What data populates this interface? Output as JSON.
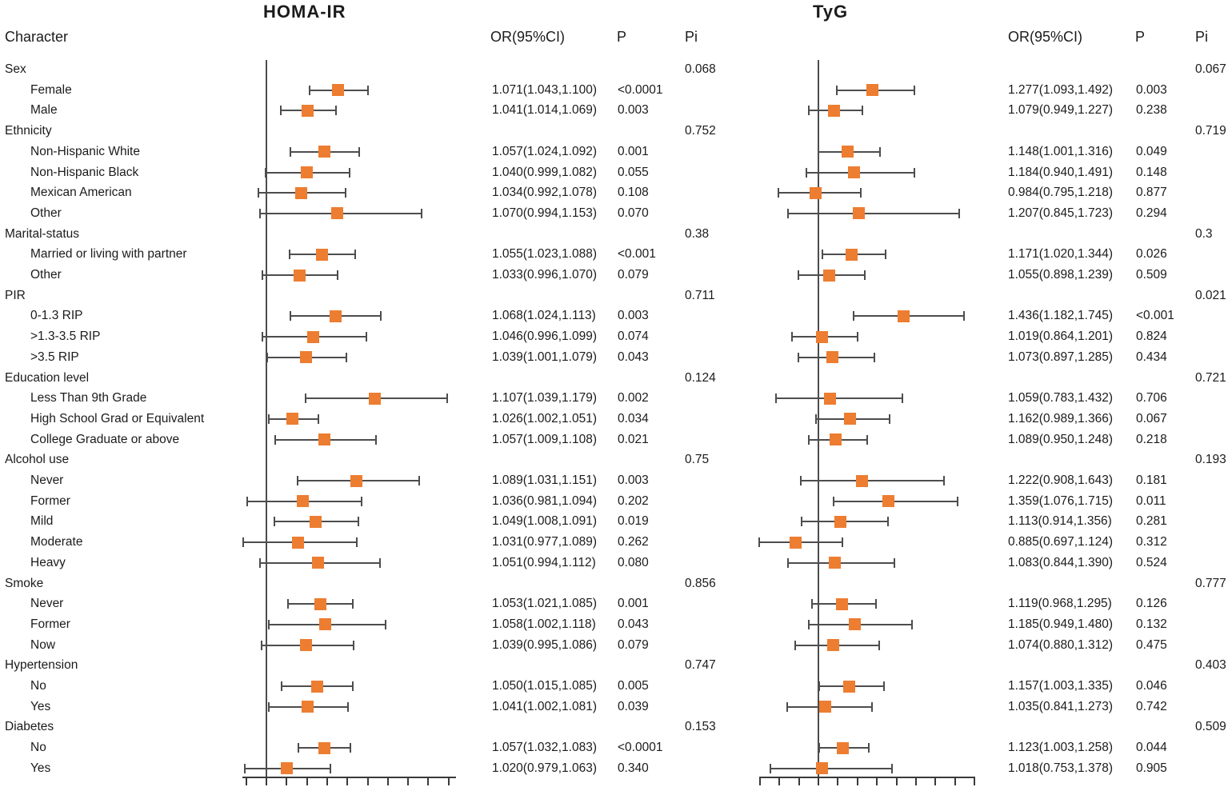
{
  "figure": {
    "left_title": "HOMA-IR",
    "right_title": "TyG",
    "column_headers": {
      "character": "Character",
      "or_ci": "OR(95%CI)",
      "p": "P",
      "pi": "Pi"
    }
  },
  "colors": {
    "marker": "#ED7D31",
    "ci_line": "#4d4d4d",
    "axis_line": "#3a3a3a",
    "text": "#1b1b1b"
  },
  "chart_data": {
    "type": "forest",
    "description": "Two-panel forest plot of odds ratios (squares) with 95% CI whiskers; vertical reference line at OR=1 in each panel; bottom axis tick labels cut off",
    "panels": [
      {
        "name": "HOMA-IR",
        "ref_line": 1.0,
        "xlim": [
          0.975,
          1.19
        ],
        "tick_start": 0.98,
        "tick_step": 0.02,
        "tick_count": 11,
        "axis_labels_visible": false
      },
      {
        "name": "TyG",
        "ref_line": 1.0,
        "xlim": [
          0.7,
          1.8
        ],
        "tick_start": 0.7,
        "tick_step": 0.1,
        "tick_count": 12,
        "axis_labels_visible": false
      }
    ],
    "rows": [
      {
        "label": "Sex",
        "indent": false,
        "homa": {
          "pi": "0.068"
        },
        "tyg": {
          "pi": "0.067"
        }
      },
      {
        "label": "Female",
        "indent": true,
        "homa": {
          "or": "1.071(1.043,1.100)",
          "p": "<0.0001"
        },
        "tyg": {
          "or": "1.277(1.093,1.492)",
          "p": "0.003"
        }
      },
      {
        "label": "Male",
        "indent": true,
        "homa": {
          "or": "1.041(1.014,1.069)",
          "p": "0.003"
        },
        "tyg": {
          "or": "1.079(0.949,1.227)",
          "p": "0.238"
        }
      },
      {
        "label": "Ethnicity",
        "indent": false,
        "homa": {
          "pi": "0.752"
        },
        "tyg": {
          "pi": "0.719"
        }
      },
      {
        "label": "Non-Hispanic White",
        "indent": true,
        "homa": {
          "or": "1.057(1.024,1.092)",
          "p": "0.001"
        },
        "tyg": {
          "or": "1.148(1.001,1.316)",
          "p": "0.049"
        }
      },
      {
        "label": "Non-Hispanic Black",
        "indent": true,
        "homa": {
          "or": "1.040(0.999,1.082)",
          "p": "0.055"
        },
        "tyg": {
          "or": "1.184(0.940,1.491)",
          "p": "0.148"
        }
      },
      {
        "label": "Mexican American",
        "indent": true,
        "homa": {
          "or": "1.034(0.992,1.078)",
          "p": "0.108"
        },
        "tyg": {
          "or": "0.984(0.795,1.218)",
          "p": "0.877"
        }
      },
      {
        "label": "Other",
        "indent": true,
        "homa": {
          "or": "1.070(0.994,1.153)",
          "p": "0.070"
        },
        "tyg": {
          "or": "1.207(0.845,1.723)",
          "p": "0.294"
        }
      },
      {
        "label": "Marital-status",
        "indent": false,
        "homa": {
          "pi": "0.38"
        },
        "tyg": {
          "pi": "0.3"
        }
      },
      {
        "label": "Married or living with partner",
        "indent": true,
        "homa": {
          "or": "1.055(1.023,1.088)",
          "p": "<0.001"
        },
        "tyg": {
          "or": "1.171(1.020,1.344)",
          "p": "0.026"
        }
      },
      {
        "label": "Other",
        "indent": true,
        "homa": {
          "or": "1.033(0.996,1.070)",
          "p": "0.079"
        },
        "tyg": {
          "or": "1.055(0.898,1.239)",
          "p": "0.509"
        }
      },
      {
        "label": "PIR",
        "indent": false,
        "homa": {
          "pi": "0.711"
        },
        "tyg": {
          "pi": "0.021"
        }
      },
      {
        "label": "0-1.3 RIP",
        "indent": true,
        "homa": {
          "or": "1.068(1.024,1.113)",
          "p": "0.003"
        },
        "tyg": {
          "or": "1.436(1.182,1.745)",
          "p": "<0.001"
        }
      },
      {
        "label": ">1.3-3.5 RIP",
        "indent": true,
        "homa": {
          "or": "1.046(0.996,1.099)",
          "p": "0.074"
        },
        "tyg": {
          "or": "1.019(0.864,1.201)",
          "p": "0.824"
        }
      },
      {
        "label": ">3.5 RIP",
        "indent": true,
        "homa": {
          "or": "1.039(1.001,1.079)",
          "p": "0.043"
        },
        "tyg": {
          "or": "1.073(0.897,1.285)",
          "p": "0.434"
        }
      },
      {
        "label": "Education level",
        "indent": false,
        "homa": {
          "pi": "0.124"
        },
        "tyg": {
          "pi": "0.721"
        }
      },
      {
        "label": "Less Than 9th Grade",
        "indent": true,
        "homa": {
          "or": "1.107(1.039,1.179)",
          "p": "0.002"
        },
        "tyg": {
          "or": "1.059(0.783,1.432)",
          "p": "0.706"
        }
      },
      {
        "label": "High School Grad or Equivalent",
        "indent": true,
        "homa": {
          "or": "1.026(1.002,1.051)",
          "p": "0.034"
        },
        "tyg": {
          "or": "1.162(0.989,1.366)",
          "p": "0.067"
        }
      },
      {
        "label": "College Graduate or above",
        "indent": true,
        "homa": {
          "or": "1.057(1.009,1.108)",
          "p": "0.021"
        },
        "tyg": {
          "or": "1.089(0.950,1.248)",
          "p": "0.218"
        }
      },
      {
        "label": "Alcohol use",
        "indent": false,
        "homa": {
          "pi": "0.75"
        },
        "tyg": {
          "pi": "0.193"
        }
      },
      {
        "label": "Never",
        "indent": true,
        "homa": {
          "or": "1.089(1.031,1.151)",
          "p": "0.003"
        },
        "tyg": {
          "or": "1.222(0.908,1.643)",
          "p": "0.181"
        }
      },
      {
        "label": "Former",
        "indent": true,
        "homa": {
          "or": "1.036(0.981,1.094)",
          "p": "0.202"
        },
        "tyg": {
          "or": "1.359(1.076,1.715)",
          "p": "0.011"
        }
      },
      {
        "label": "Mild",
        "indent": true,
        "homa": {
          "or": "1.049(1.008,1.091)",
          "p": "0.019"
        },
        "tyg": {
          "or": "1.113(0.914,1.356)",
          "p": "0.281"
        }
      },
      {
        "label": "Moderate",
        "indent": true,
        "homa": {
          "or": "1.031(0.977,1.089)",
          "p": "0.262"
        },
        "tyg": {
          "or": "0.885(0.697,1.124)",
          "p": "0.312"
        }
      },
      {
        "label": "Heavy",
        "indent": true,
        "homa": {
          "or": "1.051(0.994,1.112)",
          "p": "0.080"
        },
        "tyg": {
          "or": "1.083(0.844,1.390)",
          "p": "0.524"
        }
      },
      {
        "label": "Smoke",
        "indent": false,
        "homa": {
          "pi": "0.856"
        },
        "tyg": {
          "pi": "0.777"
        }
      },
      {
        "label": "Never",
        "indent": true,
        "homa": {
          "or": "1.053(1.021,1.085)",
          "p": "0.001"
        },
        "tyg": {
          "or": "1.119(0.968,1.295)",
          "p": "0.126"
        }
      },
      {
        "label": "Former",
        "indent": true,
        "homa": {
          "or": "1.058(1.002,1.118)",
          "p": "0.043"
        },
        "tyg": {
          "or": "1.185(0.949,1.480)",
          "p": "0.132"
        }
      },
      {
        "label": "Now",
        "indent": true,
        "homa": {
          "or": "1.039(0.995,1.086)",
          "p": "0.079"
        },
        "tyg": {
          "or": "1.074(0.880,1.312)",
          "p": "0.475"
        }
      },
      {
        "label": "Hypertension",
        "indent": false,
        "homa": {
          "pi": "0.747"
        },
        "tyg": {
          "pi": "0.403"
        }
      },
      {
        "label": "No",
        "indent": true,
        "homa": {
          "or": "1.050(1.015,1.085)",
          "p": "0.005"
        },
        "tyg": {
          "or": "1.157(1.003,1.335)",
          "p": "0.046"
        }
      },
      {
        "label": "Yes",
        "indent": true,
        "homa": {
          "or": "1.041(1.002,1.081)",
          "p": "0.039"
        },
        "tyg": {
          "or": "1.035(0.841,1.273)",
          "p": "0.742"
        }
      },
      {
        "label": "Diabetes",
        "indent": false,
        "homa": {
          "pi": "0.153"
        },
        "tyg": {
          "pi": "0.509"
        }
      },
      {
        "label": "No",
        "indent": true,
        "homa": {
          "or": "1.057(1.032,1.083)",
          "p": "<0.0001"
        },
        "tyg": {
          "or": "1.123(1.003,1.258)",
          "p": "0.044"
        }
      },
      {
        "label": "Yes",
        "indent": true,
        "homa": {
          "or": "1.020(0.979,1.063)",
          "p": "0.340"
        },
        "tyg": {
          "or": "1.018(0.753,1.378)",
          "p": "0.905"
        }
      }
    ]
  }
}
